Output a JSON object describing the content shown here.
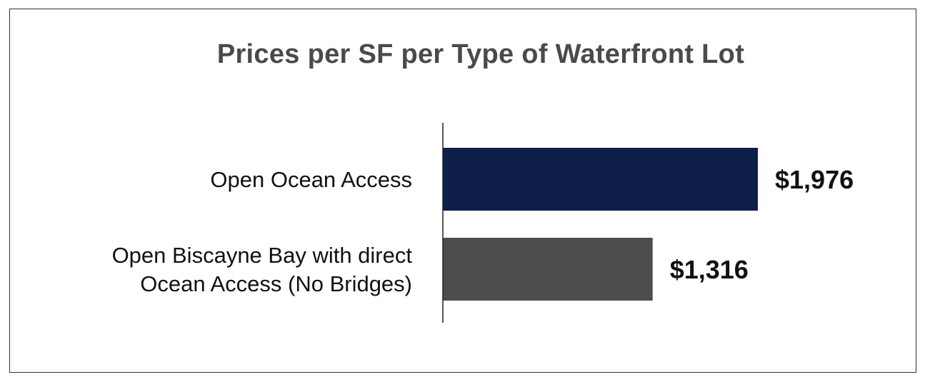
{
  "chart_data": {
    "type": "bar",
    "orientation": "horizontal",
    "title": "Prices per SF per Type of Waterfront Lot",
    "categories": [
      [
        "Open Ocean Access"
      ],
      [
        "Open Biscayne Bay with direct",
        "Ocean Access (No Bridges)"
      ]
    ],
    "values": [
      1976,
      1316
    ],
    "value_labels": [
      "$1,976",
      "$1,316"
    ],
    "colors": [
      "#0e1f4a",
      "#4d4d4f"
    ],
    "xlim": [
      0,
      1976
    ],
    "grid": false,
    "legend": "none"
  }
}
